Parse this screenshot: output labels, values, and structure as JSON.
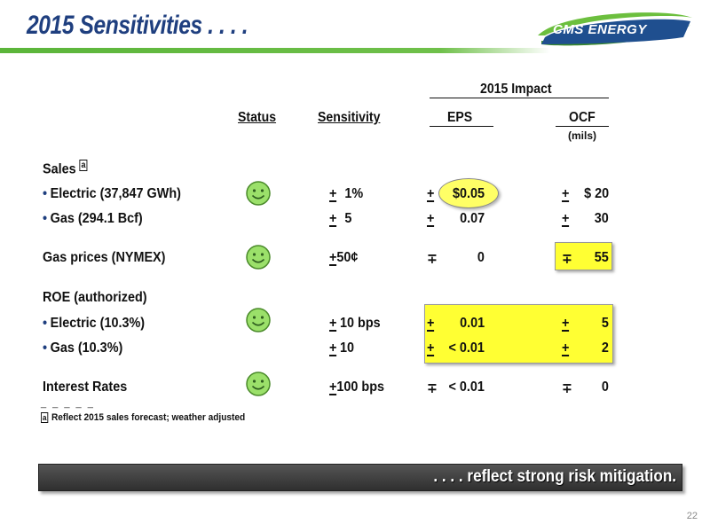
{
  "slide": {
    "title": "2015 Sensitivities . . . .",
    "logo_text": "CMS ENERGY",
    "page_number": "22"
  },
  "header": {
    "group": "2015 Impact",
    "status": "Status",
    "sensitivity": "Sensitivity",
    "eps": "EPS",
    "ocf": "OCF",
    "ocf_unit": "(mils)"
  },
  "rows": {
    "sales_heading": "Sales",
    "sales_note": "a",
    "electric": {
      "label": "Electric (37,847 GWh)",
      "sens_pm": "+",
      "sens": "1%",
      "eps_pm": "+",
      "eps": "$0.05",
      "ocf_pm": "+",
      "ocf": "$ 20"
    },
    "gas": {
      "label": "Gas (294.1 Bcf)",
      "sens_pm": "+",
      "sens": "5",
      "eps_pm": "+",
      "eps": "0.07",
      "ocf_pm": "+",
      "ocf": "30"
    },
    "gas_prices": {
      "label": "Gas prices (NYMEX)",
      "sens_pm": "+",
      "sens": "50¢",
      "eps_pm": "∓",
      "eps": "0",
      "ocf_pm": "∓",
      "ocf": "55"
    },
    "roe_heading": "ROE (authorized)",
    "roe_electric": {
      "label": "Electric (10.3%)",
      "sens_pm": "+",
      "sens": "10 bps",
      "eps_pm": "+",
      "eps": "0.01",
      "ocf_pm": "+",
      "ocf": "5"
    },
    "roe_gas": {
      "label": "Gas (10.3%)",
      "sens_pm": "+",
      "sens": "10",
      "eps_pm": "+",
      "eps": "< 0.01",
      "ocf_pm": "+",
      "ocf": "2"
    },
    "interest": {
      "label": "Interest Rates",
      "sens_pm": "+",
      "sens": "100 bps",
      "eps_pm": "∓",
      "eps": "< 0.01",
      "ocf_pm": "∓",
      "ocf": "0"
    }
  },
  "footnote": {
    "dashes": "_ _ _ _ _",
    "marker": "a",
    "text": "Reflect 2015 sales forecast; weather adjusted"
  },
  "banner": {
    "text": ". . . . reflect strong risk mitigation."
  }
}
